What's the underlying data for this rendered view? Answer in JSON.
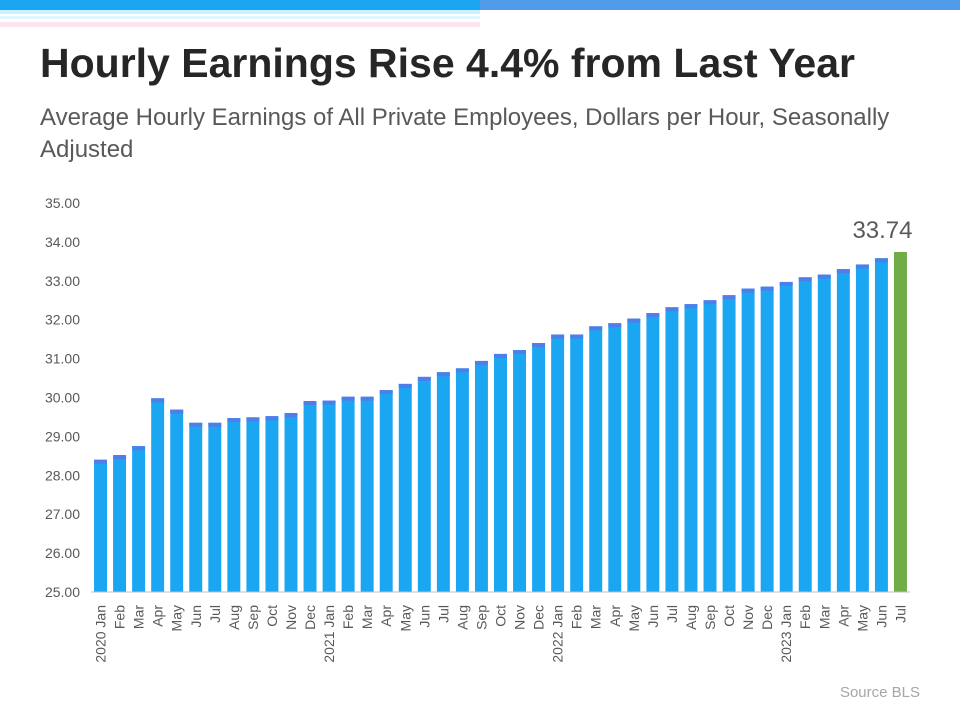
{
  "title": "Hourly Earnings Rise 4.4% from Last Year",
  "subtitle": "Average Hourly Earnings of All Private Employees, Dollars per Hour, Seasonally Adjusted",
  "source": "Source BLS",
  "colors": {
    "bar": "#1aa6f0",
    "bar_top": "#4f7ee8",
    "highlight": "#70ad47",
    "axis_text": "#595959",
    "title": "#262626"
  },
  "chart_data": {
    "type": "bar",
    "title": "Hourly Earnings Rise 4.4% from Last Year",
    "xlabel": "",
    "ylabel": "",
    "ylim": [
      25,
      35
    ],
    "y_ticks": [
      "25.00",
      "26.00",
      "27.00",
      "28.00",
      "29.00",
      "30.00",
      "31.00",
      "32.00",
      "33.00",
      "34.00",
      "35.00"
    ],
    "grid": false,
    "categories": [
      "2020 Jan",
      "Feb",
      "Mar",
      "Apr",
      "May",
      "Jun",
      "Jul",
      "Aug",
      "Sep",
      "Oct",
      "Nov",
      "Dec",
      "2021 Jan",
      "Feb",
      "Mar",
      "Apr",
      "May",
      "Jun",
      "Jul",
      "Aug",
      "Sep",
      "Oct",
      "Nov",
      "Dec",
      "2022 Jan",
      "Feb",
      "Mar",
      "Apr",
      "May",
      "Jun",
      "Jul",
      "Aug",
      "Sep",
      "Oct",
      "Nov",
      "Dec",
      "2023 Jan",
      "Feb",
      "Mar",
      "Apr",
      "May",
      "Jun",
      "Jul"
    ],
    "values": [
      28.4,
      28.52,
      28.75,
      29.98,
      29.69,
      29.35,
      29.35,
      29.47,
      29.49,
      29.52,
      29.6,
      29.91,
      29.92,
      30.02,
      30.02,
      30.19,
      30.35,
      30.53,
      30.65,
      30.75,
      30.94,
      31.12,
      31.22,
      31.4,
      31.62,
      31.62,
      31.83,
      31.91,
      32.03,
      32.17,
      32.32,
      32.4,
      32.5,
      32.63,
      32.8,
      32.85,
      32.97,
      33.09,
      33.16,
      33.3,
      33.42,
      33.58,
      33.74
    ],
    "highlight_index": 42,
    "data_labels": [
      {
        "index": 42,
        "text": "33.74"
      }
    ]
  }
}
